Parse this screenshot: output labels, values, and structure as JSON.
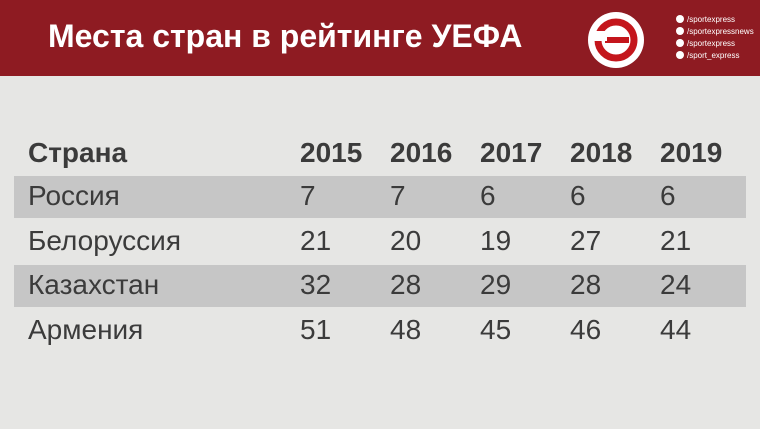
{
  "header": {
    "title": "Места стран в рейтинге УЕФА",
    "social": [
      "/sportexpress",
      "/sportexpressnews",
      "/sportexpress",
      "/sport_express"
    ]
  },
  "table": {
    "columns": [
      "Страна",
      "2015",
      "2016",
      "2017",
      "2018",
      "2019"
    ],
    "rows": [
      [
        "Россия",
        7,
        7,
        6,
        6,
        6
      ],
      [
        "Белоруссия",
        21,
        20,
        19,
        27,
        21
      ],
      [
        "Казахстан",
        32,
        28,
        29,
        28,
        24
      ],
      [
        "Армения",
        51,
        48,
        45,
        46,
        44
      ]
    ]
  }
}
